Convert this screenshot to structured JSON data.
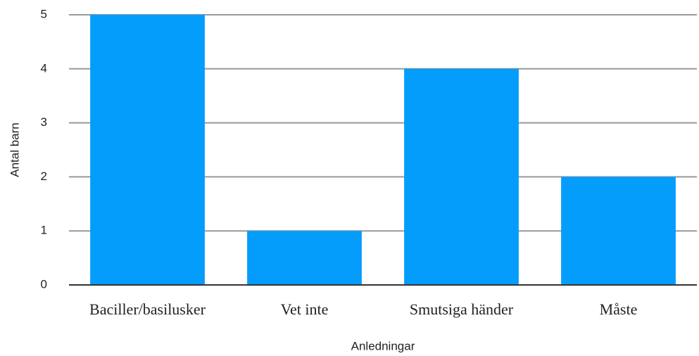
{
  "chart_data": {
    "type": "bar",
    "categories": [
      "Baciller/basilusker",
      "Vet inte",
      "Smutsiga händer",
      "Måste"
    ],
    "values": [
      5,
      1,
      4,
      2
    ],
    "color": "#049dfc",
    "xlabel": "Anledningar",
    "ylabel": "Antal barn",
    "ylim": [
      0,
      5
    ],
    "yticks": [
      0,
      1,
      2,
      3,
      4,
      5
    ],
    "grid": true
  }
}
